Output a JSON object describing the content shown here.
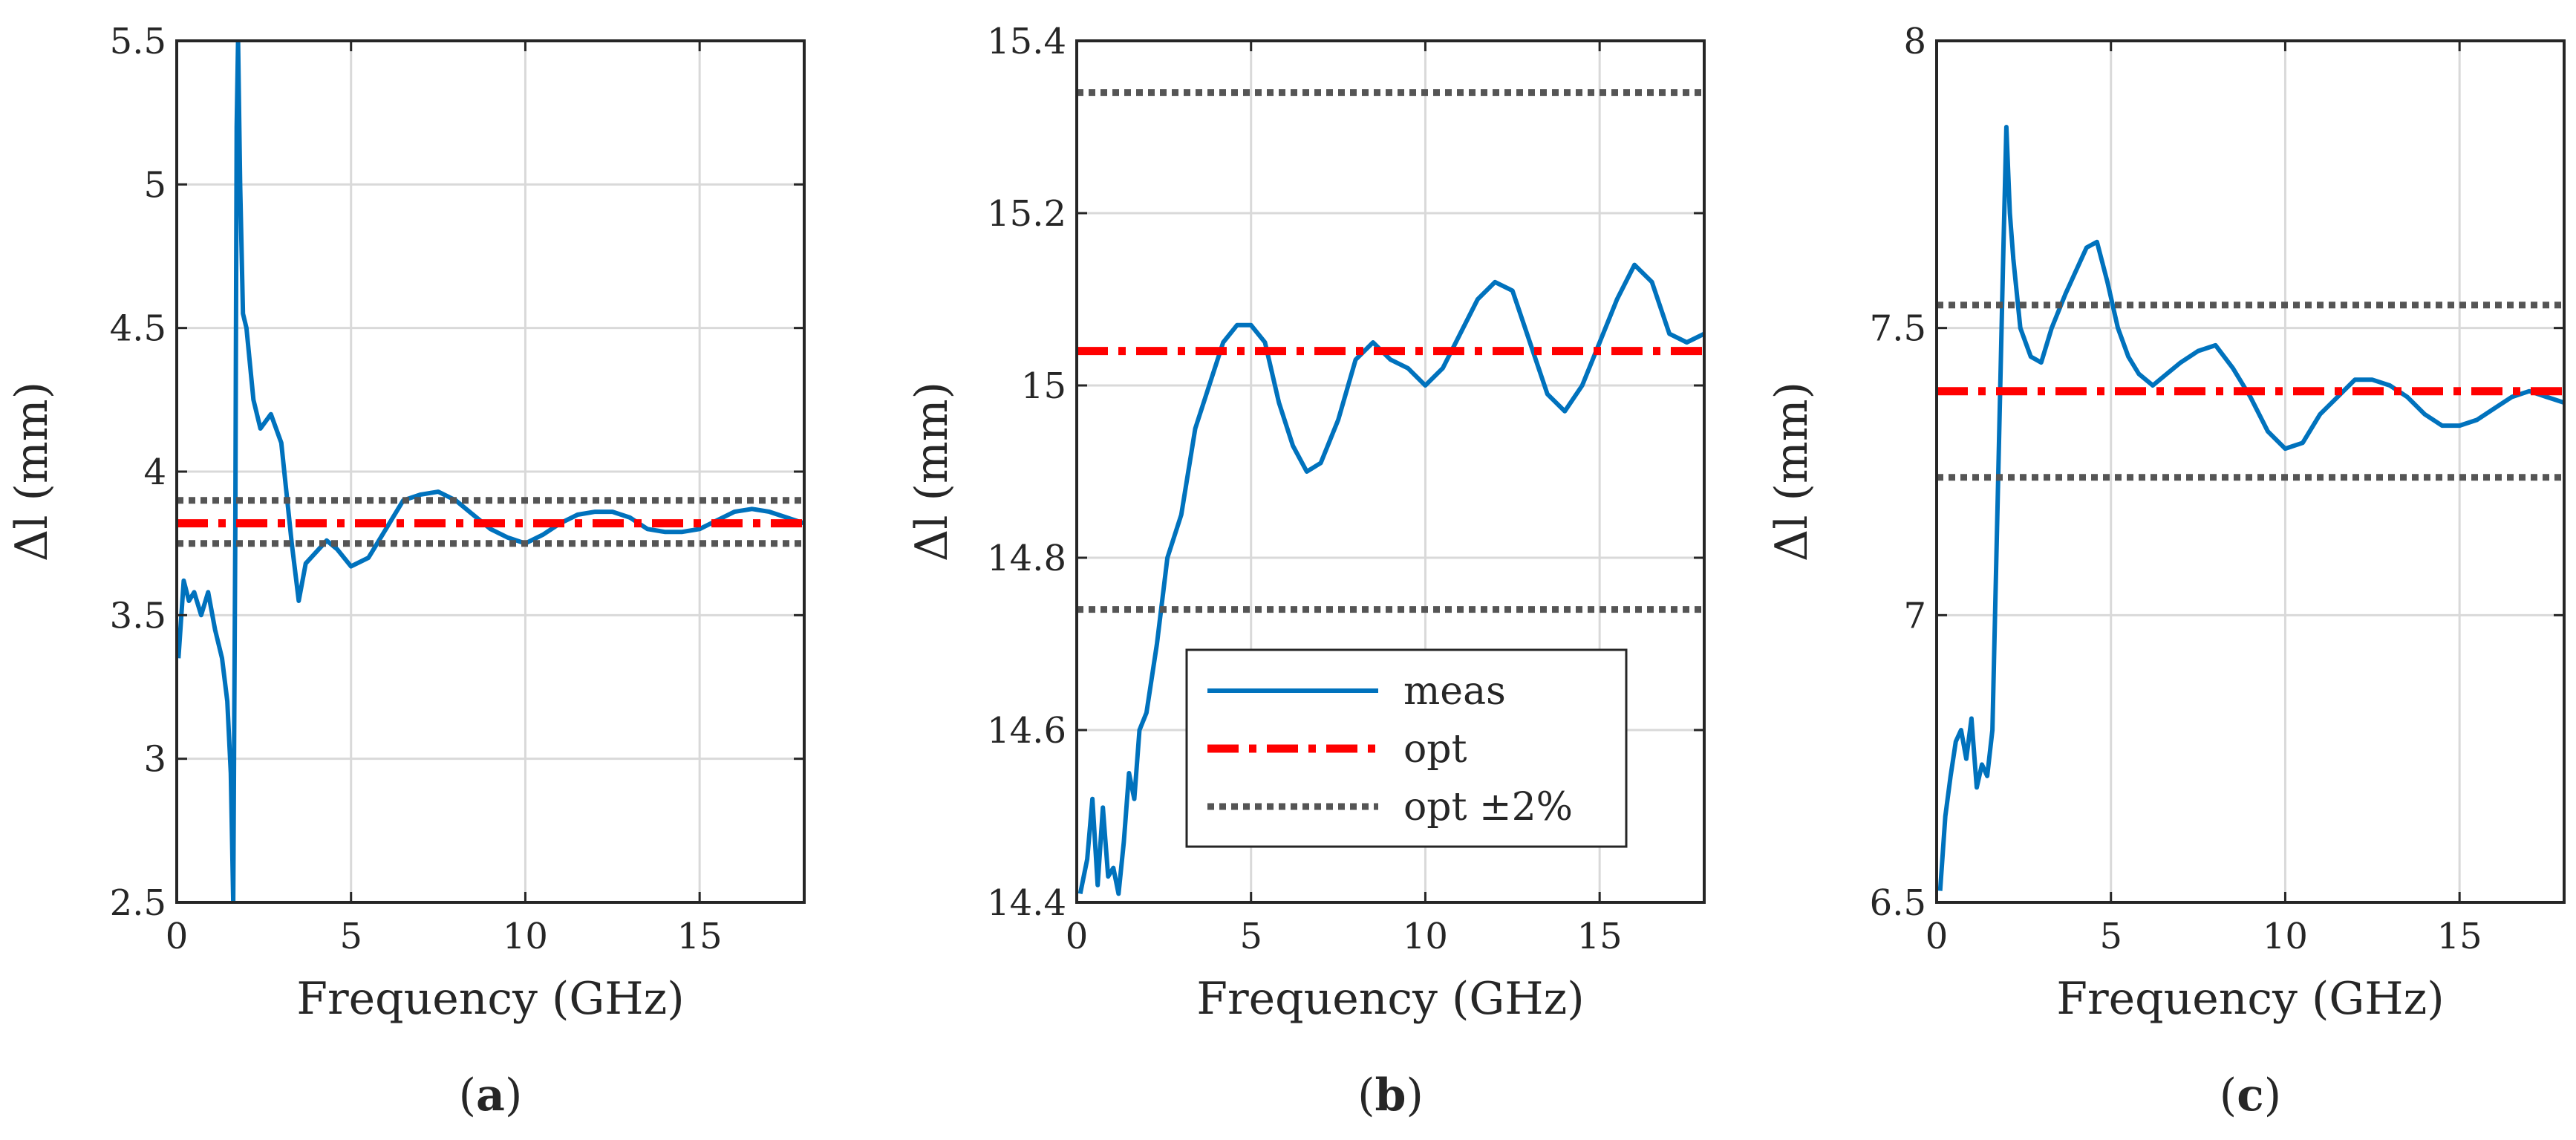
{
  "chart_data": [
    {
      "type": "line",
      "panel_label": "a",
      "xlabel": "Frequency (GHz)",
      "ylabel": "Δl (mm)",
      "xlim": [
        0,
        18
      ],
      "ylim": [
        2.5,
        5.5
      ],
      "xticks": [
        0,
        5,
        10,
        15
      ],
      "yticks": [
        2.5,
        3,
        3.5,
        4,
        4.5,
        5,
        5.5
      ],
      "ytick_labels": [
        "2.5",
        "3",
        "3.5",
        "4",
        "4.5",
        "5",
        "5.5"
      ],
      "grid": true,
      "series": [
        {
          "name": "meas",
          "color": "#0072BD",
          "style": "solid",
          "x": [
            0.05,
            0.2,
            0.35,
            0.5,
            0.7,
            0.9,
            1.1,
            1.3,
            1.45,
            1.55,
            1.62,
            1.68,
            1.72,
            1.76,
            1.82,
            1.9,
            2.0,
            2.2,
            2.4,
            2.7,
            3.0,
            3.3,
            3.5,
            3.7,
            4.0,
            4.3,
            4.6,
            5.0,
            5.5,
            6.0,
            6.5,
            7.0,
            7.5,
            8.0,
            8.5,
            9.0,
            9.5,
            10.0,
            10.5,
            11.0,
            11.5,
            12.0,
            12.5,
            13.0,
            13.5,
            14.0,
            14.5,
            15.0,
            15.5,
            16.0,
            16.5,
            17.0,
            17.5,
            18.0
          ],
          "values": [
            3.35,
            3.62,
            3.55,
            3.58,
            3.5,
            3.58,
            3.45,
            3.35,
            3.2,
            2.95,
            2.5,
            3.8,
            5.2,
            5.5,
            5.0,
            4.55,
            4.5,
            4.25,
            4.15,
            4.2,
            4.1,
            3.75,
            3.55,
            3.68,
            3.72,
            3.76,
            3.73,
            3.67,
            3.7,
            3.8,
            3.9,
            3.92,
            3.93,
            3.9,
            3.85,
            3.8,
            3.77,
            3.75,
            3.78,
            3.82,
            3.85,
            3.86,
            3.86,
            3.84,
            3.8,
            3.79,
            3.79,
            3.8,
            3.83,
            3.86,
            3.87,
            3.86,
            3.84,
            3.82
          ]
        },
        {
          "name": "opt",
          "color": "#FF0000",
          "style": "dashdot",
          "x": [
            0,
            18
          ],
          "values": [
            3.82,
            3.82
          ]
        },
        {
          "name": "opt ±2%",
          "color": "#555555",
          "style": "dotted",
          "x": [
            0,
            18
          ],
          "values": [
            3.9,
            3.9
          ]
        },
        {
          "name": "opt ±2%",
          "color": "#555555",
          "style": "dotted",
          "x": [
            0,
            18
          ],
          "values": [
            3.75,
            3.75
          ]
        }
      ]
    },
    {
      "type": "line",
      "panel_label": "b",
      "xlabel": "Frequency (GHz)",
      "ylabel": "Δl (mm)",
      "xlim": [
        0,
        18
      ],
      "ylim": [
        14.4,
        15.4
      ],
      "xticks": [
        0,
        5,
        10,
        15
      ],
      "yticks": [
        14.4,
        14.6,
        14.8,
        15.0,
        15.2,
        15.4
      ],
      "ytick_labels": [
        "14.4",
        "14.6",
        "14.8",
        "15",
        "15.2",
        "15.4"
      ],
      "grid": true,
      "legend": {
        "position": "lower-middle",
        "entries": [
          "meas",
          "opt",
          "opt ±2%"
        ]
      },
      "series": [
        {
          "name": "meas",
          "color": "#0072BD",
          "style": "solid",
          "x": [
            0.1,
            0.3,
            0.45,
            0.6,
            0.75,
            0.9,
            1.05,
            1.2,
            1.35,
            1.5,
            1.65,
            1.8,
            2.0,
            2.3,
            2.6,
            3.0,
            3.4,
            3.8,
            4.2,
            4.6,
            5.0,
            5.4,
            5.8,
            6.2,
            6.6,
            7.0,
            7.5,
            8.0,
            8.5,
            9.0,
            9.5,
            10.0,
            10.5,
            11.0,
            11.5,
            12.0,
            12.5,
            13.0,
            13.5,
            14.0,
            14.5,
            15.0,
            15.5,
            16.0,
            16.5,
            17.0,
            17.5,
            18.0
          ],
          "values": [
            14.41,
            14.45,
            14.52,
            14.42,
            14.51,
            14.43,
            14.44,
            14.41,
            14.47,
            14.55,
            14.52,
            14.6,
            14.62,
            14.7,
            14.8,
            14.85,
            14.95,
            15.0,
            15.05,
            15.07,
            15.07,
            15.05,
            14.98,
            14.93,
            14.9,
            14.91,
            14.96,
            15.03,
            15.05,
            15.03,
            15.02,
            15.0,
            15.02,
            15.06,
            15.1,
            15.12,
            15.11,
            15.05,
            14.99,
            14.97,
            15.0,
            15.05,
            15.1,
            15.14,
            15.12,
            15.06,
            15.05,
            15.06
          ]
        },
        {
          "name": "opt",
          "color": "#FF0000",
          "style": "dashdot",
          "x": [
            0,
            18
          ],
          "values": [
            15.04,
            15.04
          ]
        },
        {
          "name": "opt ±2%",
          "color": "#555555",
          "style": "dotted",
          "x": [
            0,
            18
          ],
          "values": [
            15.34,
            15.34
          ]
        },
        {
          "name": "opt ±2%",
          "color": "#555555",
          "style": "dotted",
          "x": [
            0,
            18
          ],
          "values": [
            14.74,
            14.74
          ]
        }
      ]
    },
    {
      "type": "line",
      "panel_label": "c",
      "xlabel": "Frequency (GHz)",
      "ylabel": "Δl (mm)",
      "xlim": [
        0,
        18
      ],
      "ylim": [
        6.5,
        8.0
      ],
      "xticks": [
        0,
        5,
        10,
        15
      ],
      "yticks": [
        6.5,
        7.0,
        7.5,
        8.0
      ],
      "ytick_labels": [
        "6.5",
        "7",
        "7.5",
        "8"
      ],
      "grid": true,
      "series": [
        {
          "name": "meas",
          "color": "#0072BD",
          "style": "solid",
          "x": [
            0.1,
            0.25,
            0.4,
            0.55,
            0.7,
            0.85,
            1.0,
            1.15,
            1.3,
            1.45,
            1.6,
            1.75,
            1.9,
            2.0,
            2.1,
            2.2,
            2.4,
            2.7,
            3.0,
            3.3,
            3.7,
            4.0,
            4.3,
            4.6,
            4.9,
            5.2,
            5.5,
            5.8,
            6.2,
            6.6,
            7.0,
            7.5,
            8.0,
            8.5,
            9.0,
            9.5,
            10.0,
            10.5,
            11.0,
            11.5,
            12.0,
            12.5,
            13.0,
            13.5,
            14.0,
            14.5,
            15.0,
            15.5,
            16.0,
            16.5,
            17.0,
            17.5,
            18.0
          ],
          "values": [
            6.52,
            6.65,
            6.72,
            6.78,
            6.8,
            6.75,
            6.82,
            6.7,
            6.74,
            6.72,
            6.8,
            7.2,
            7.6,
            7.85,
            7.7,
            7.62,
            7.5,
            7.45,
            7.44,
            7.5,
            7.56,
            7.6,
            7.64,
            7.65,
            7.58,
            7.5,
            7.45,
            7.42,
            7.4,
            7.42,
            7.44,
            7.46,
            7.47,
            7.43,
            7.38,
            7.32,
            7.29,
            7.3,
            7.35,
            7.38,
            7.41,
            7.41,
            7.4,
            7.38,
            7.35,
            7.33,
            7.33,
            7.34,
            7.36,
            7.38,
            7.39,
            7.38,
            7.37
          ]
        },
        {
          "name": "opt",
          "color": "#FF0000",
          "style": "dashdot",
          "x": [
            0,
            18
          ],
          "values": [
            7.39,
            7.39
          ]
        },
        {
          "name": "opt ±2%",
          "color": "#555555",
          "style": "dotted",
          "x": [
            0,
            18
          ],
          "values": [
            7.54,
            7.54
          ]
        },
        {
          "name": "opt ±2%",
          "color": "#555555",
          "style": "dotted",
          "x": [
            0,
            18
          ],
          "values": [
            7.24,
            7.24
          ]
        }
      ]
    }
  ]
}
